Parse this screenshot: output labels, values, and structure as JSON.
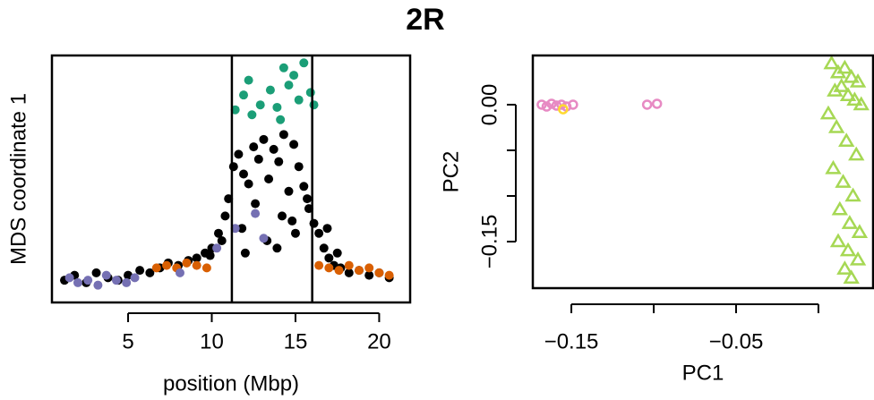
{
  "title": "2R",
  "chart_data": [
    {
      "type": "scatter",
      "xlabel": "position (Mbp)",
      "ylabel": "MDS coordinate 1",
      "xlim": [
        0.45,
        21.85
      ],
      "ylim": [
        0,
        1
      ],
      "xticks": [
        5,
        10,
        15,
        20
      ],
      "vlines": [
        11.2,
        16.0
      ],
      "series": [
        {
          "color": "#000000",
          "marker": "dot",
          "x": [
            1.2,
            1.8,
            2.5,
            3.1,
            3.8,
            4.4,
            5.0,
            5.7,
            6.3,
            6.9,
            7.4,
            8.0,
            8.6,
            9.1,
            9.6,
            10.0,
            10.4,
            10.8,
            11.0,
            11.3,
            11.6,
            11.9,
            12.2,
            12.5,
            12.8,
            13.1,
            13.4,
            13.7,
            14.0,
            14.3,
            14.6,
            14.9,
            15.2,
            15.5,
            15.8,
            16.1,
            16.4,
            16.7,
            17.0,
            17.3,
            17.7,
            18.2,
            18.8,
            19.4,
            20.0,
            20.6,
            11.8,
            12.6,
            13.3,
            14.2,
            15.0,
            15.7,
            12.0,
            13.9,
            14.8,
            10.6,
            9.9,
            16.9,
            17.5
          ],
          "values": [
            0.09,
            0.11,
            0.08,
            0.12,
            0.1,
            0.09,
            0.11,
            0.13,
            0.12,
            0.14,
            0.16,
            0.15,
            0.17,
            0.18,
            0.2,
            0.22,
            0.28,
            0.35,
            0.42,
            0.55,
            0.6,
            0.52,
            0.48,
            0.63,
            0.58,
            0.66,
            0.5,
            0.62,
            0.57,
            0.68,
            0.45,
            0.64,
            0.55,
            0.47,
            0.38,
            0.32,
            0.28,
            0.22,
            0.18,
            0.15,
            0.14,
            0.12,
            0.13,
            0.11,
            0.12,
            0.1,
            0.3,
            0.4,
            0.25,
            0.35,
            0.28,
            0.42,
            0.2,
            0.22,
            0.33,
            0.25,
            0.19,
            0.3,
            0.2
          ]
        },
        {
          "color": "#1b9e77",
          "marker": "dot",
          "x": [
            11.4,
            11.9,
            12.4,
            12.9,
            13.5,
            13.9,
            14.3,
            14.6,
            14.9,
            15.2,
            15.5,
            15.9,
            16.1,
            12.2,
            14.1
          ],
          "values": [
            0.78,
            0.84,
            0.76,
            0.8,
            0.86,
            0.79,
            0.95,
            0.88,
            0.92,
            0.82,
            0.97,
            0.85,
            0.8,
            0.9,
            0.74
          ]
        },
        {
          "color": "#d95f02",
          "marker": "dot",
          "x": [
            6.7,
            7.3,
            7.9,
            8.5,
            9.1,
            9.7,
            16.4,
            17.0,
            17.6,
            18.2,
            18.8,
            19.4,
            20.0,
            20.6
          ],
          "values": [
            0.14,
            0.15,
            0.14,
            0.16,
            0.15,
            0.14,
            0.15,
            0.14,
            0.13,
            0.15,
            0.13,
            0.14,
            0.12,
            0.11
          ]
        },
        {
          "color": "#7570b3",
          "marker": "dot",
          "x": [
            1.5,
            2.0,
            2.6,
            3.2,
            3.7,
            4.3,
            4.9,
            5.4,
            8.1,
            10.3,
            11.4,
            12.6,
            13.1
          ],
          "values": [
            0.1,
            0.08,
            0.09,
            0.07,
            0.11,
            0.09,
            0.08,
            0.1,
            0.12,
            0.22,
            0.3,
            0.36,
            0.26
          ]
        }
      ]
    },
    {
      "type": "scatter",
      "xlabel": "PC1",
      "ylabel": "PC2",
      "xlim": [
        -0.1734,
        0.0332
      ],
      "ylim": [
        -0.201,
        0.0539
      ],
      "xticks": [
        {
          "value": -0.15,
          "label": "−0.15"
        },
        {
          "value": -0.05,
          "label": "−0.05"
        }
      ],
      "xticks_unlabeled": [
        -0.1,
        0
      ],
      "yticks": [
        {
          "value": 0,
          "label": "0.00"
        },
        {
          "value": -0.15,
          "label": "−0.15"
        }
      ],
      "yticks_unlabeled": [
        -0.05,
        -0.1
      ],
      "series": [
        {
          "color": "#e78ac3",
          "marker": "circle",
          "x": [
            -0.168,
            -0.165,
            -0.162,
            -0.159,
            -0.156,
            -0.153,
            -0.149,
            -0.104,
            -0.098
          ],
          "values": [
            0.0,
            -0.002,
            0.001,
            -0.001,
            0.0,
            -0.002,
            0.0,
            0.0,
            0.001
          ]
        },
        {
          "color": "#ffd92f",
          "marker": "circle",
          "x": [
            -0.155
          ],
          "values": [
            -0.005
          ]
        },
        {
          "color": "#a6d854",
          "marker": "triangle",
          "x": [
            0.008,
            0.012,
            0.016,
            0.02,
            0.024,
            0.01,
            0.014,
            0.018,
            0.022,
            0.026,
            0.006,
            0.011,
            0.017,
            0.023,
            0.009,
            0.015,
            0.021,
            0.013,
            0.019,
            0.025,
            0.012,
            0.018,
            0.024,
            0.016,
            0.02
          ],
          "values": [
            0.045,
            0.035,
            0.04,
            0.03,
            0.025,
            0.015,
            0.02,
            0.01,
            0.005,
            0.0,
            -0.01,
            -0.025,
            -0.04,
            -0.055,
            -0.07,
            -0.085,
            -0.1,
            -0.115,
            -0.13,
            -0.14,
            -0.15,
            -0.16,
            -0.17,
            -0.18,
            -0.19
          ]
        }
      ]
    }
  ]
}
